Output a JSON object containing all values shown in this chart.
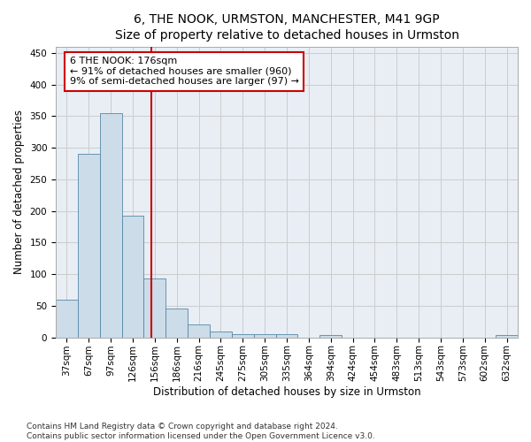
{
  "title": "6, THE NOOK, URMSTON, MANCHESTER, M41 9GP",
  "subtitle": "Size of property relative to detached houses in Urmston",
  "xlabel": "Distribution of detached houses by size in Urmston",
  "ylabel": "Number of detached properties",
  "categories": [
    "37sqm",
    "67sqm",
    "97sqm",
    "126sqm",
    "156sqm",
    "186sqm",
    "216sqm",
    "245sqm",
    "275sqm",
    "305sqm",
    "335sqm",
    "364sqm",
    "394sqm",
    "424sqm",
    "454sqm",
    "483sqm",
    "513sqm",
    "543sqm",
    "573sqm",
    "602sqm",
    "632sqm"
  ],
  "values": [
    59,
    290,
    355,
    193,
    93,
    46,
    20,
    9,
    5,
    5,
    5,
    0,
    4,
    0,
    0,
    0,
    0,
    0,
    0,
    0,
    4
  ],
  "bar_color": "#ccdce8",
  "bar_edge_color": "#5588aa",
  "vline_color": "#cc0000",
  "vline_pos": 3.83,
  "annotation_text": "6 THE NOOK: 176sqm\n← 91% of detached houses are smaller (960)\n9% of semi-detached houses are larger (97) →",
  "annotation_box_color": "#ffffff",
  "annotation_box_edge": "#cc0000",
  "ylim": [
    0,
    460
  ],
  "yticks": [
    0,
    50,
    100,
    150,
    200,
    250,
    300,
    350,
    400,
    450
  ],
  "grid_color": "#cccccc",
  "bg_color": "#e8eef4",
  "footnote": "Contains HM Land Registry data © Crown copyright and database right 2024.\nContains public sector information licensed under the Open Government Licence v3.0.",
  "title_fontsize": 10,
  "xlabel_fontsize": 8.5,
  "ylabel_fontsize": 8.5,
  "tick_fontsize": 7.5,
  "annot_fontsize": 8,
  "footnote_fontsize": 6.5
}
